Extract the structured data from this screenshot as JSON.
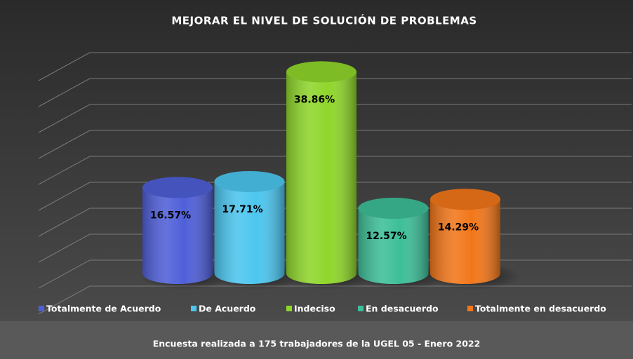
{
  "chart_data": {
    "type": "cylinder",
    "title": "MEJORAR EL NIVEL DE SOLUCIÓN DE PROBLEMAS",
    "categories": [
      "Totalmente de Acuerdo",
      "De Acuerdo",
      "Indeciso",
      "En desacuerdo",
      "Totalmente en desacuerdo"
    ],
    "values": [
      16.57,
      17.71,
      38.86,
      12.57,
      14.29
    ],
    "value_labels": [
      "16.57%",
      "17.71%",
      "38.86%",
      "12.57%",
      "14.29%"
    ],
    "colors": [
      "#4f5fd8",
      "#4cc6ef",
      "#8fd62b",
      "#3dbf98",
      "#f2771a"
    ],
    "ylim": [
      0,
      45
    ],
    "yticks": [
      0,
      5,
      10,
      15,
      20,
      25,
      30,
      35,
      40,
      45
    ],
    "grid": true,
    "legend": "bottom",
    "footer": "Encuesta realizada a 175 trabajadores de la UGEL 05 - Enero 2022"
  }
}
